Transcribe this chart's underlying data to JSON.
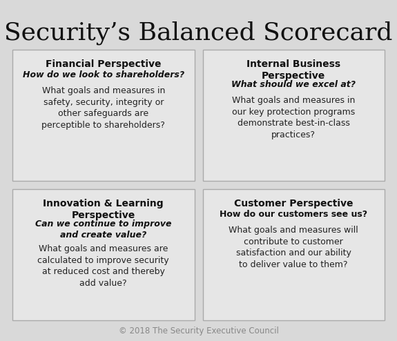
{
  "title": "Security’s Balanced Scorecard",
  "title_fontsize": 26,
  "background_color": "#d9d9d9",
  "box_bg_color": "#e6e6e6",
  "box_edge_color": "#aaaaaa",
  "footer": "© 2018 The Security Executive Council",
  "footer_fontsize": 8.5,
  "panels": [
    {
      "heading": "Financial Perspective",
      "subheading": "How do we look to shareholders?",
      "body": "What goals and measures in\nsafety, security, integrity or\nother safeguards are\nperceptible to shareholders?",
      "subheading_italic": true,
      "col": 0,
      "row": 0
    },
    {
      "heading": "Internal Business\nPerspective",
      "subheading": "What should we excel at?",
      "body": "What goals and measures in\nour key protection programs\ndemonstrate best-in-class\npractices?",
      "subheading_italic": true,
      "col": 1,
      "row": 0
    },
    {
      "heading": "Innovation & Learning\nPerspective",
      "subheading": "Can we continue to improve\nand create value?",
      "body": "What goals and measures are\ncalculated to improve security\nat reduced cost and thereby\nadd value?",
      "subheading_italic": true,
      "col": 0,
      "row": 1
    },
    {
      "heading": "Customer Perspective",
      "subheading": "How do our customers see us?",
      "body": "What goals and measures will\ncontribute to customer\nsatisfaction and our ability\nto deliver value to them?",
      "subheading_italic": false,
      "col": 1,
      "row": 1
    }
  ]
}
